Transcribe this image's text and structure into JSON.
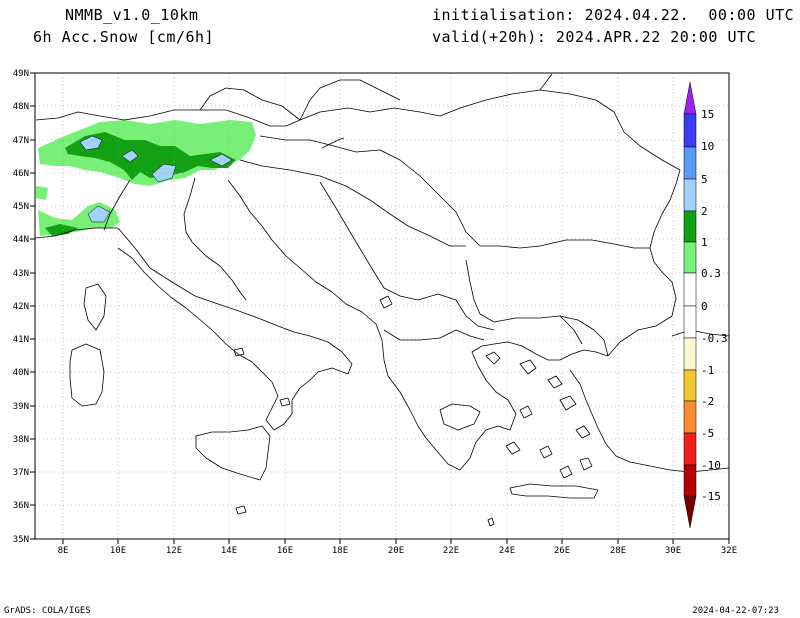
{
  "header": {
    "model": "NMMB_v1.0_10km",
    "field": "6h Acc.Snow [cm/6h]",
    "init": "initialisation: 2024.04.22.  00:00 UTC",
    "valid": "valid(+20h): 2024.APR.22 20:00 UTC"
  },
  "footer": {
    "credit": "GrADS: COLA/IGES",
    "timestamp": "2024-04-22-07:23"
  },
  "map": {
    "lon_range": [
      7,
      32
    ],
    "lat_range": [
      35,
      49
    ],
    "lon_ticks": [
      "8E",
      "10E",
      "12E",
      "14E",
      "16E",
      "18E",
      "20E",
      "22E",
      "24E",
      "26E",
      "28E",
      "30E",
      "32E"
    ],
    "lat_ticks": [
      "35N",
      "36N",
      "37N",
      "38N",
      "39N",
      "40N",
      "41N",
      "42N",
      "43N",
      "44N",
      "45N",
      "46N",
      "47N",
      "48N",
      "49N"
    ],
    "grid": "dotted"
  },
  "colorbar": {
    "labels": [
      "15",
      "10",
      "5",
      "2",
      "1",
      "0.3",
      "0",
      "-0.3",
      "-1",
      "-2",
      "-5",
      "-10",
      "-15"
    ],
    "colors_top_to_bottom": [
      "#a020f0",
      "#3c3cf5",
      "#5a9cf5",
      "#a0d2fa",
      "#14a014",
      "#78f078",
      "#ffffff",
      "#ffffff",
      "#fafad2",
      "#f0c832",
      "#fa8c32",
      "#f01e1e",
      "#b40000",
      "#780000"
    ]
  },
  "snow_colors": {
    "light": "#78f078",
    "medium": "#14a014",
    "heavy": "#a0d2fa"
  }
}
